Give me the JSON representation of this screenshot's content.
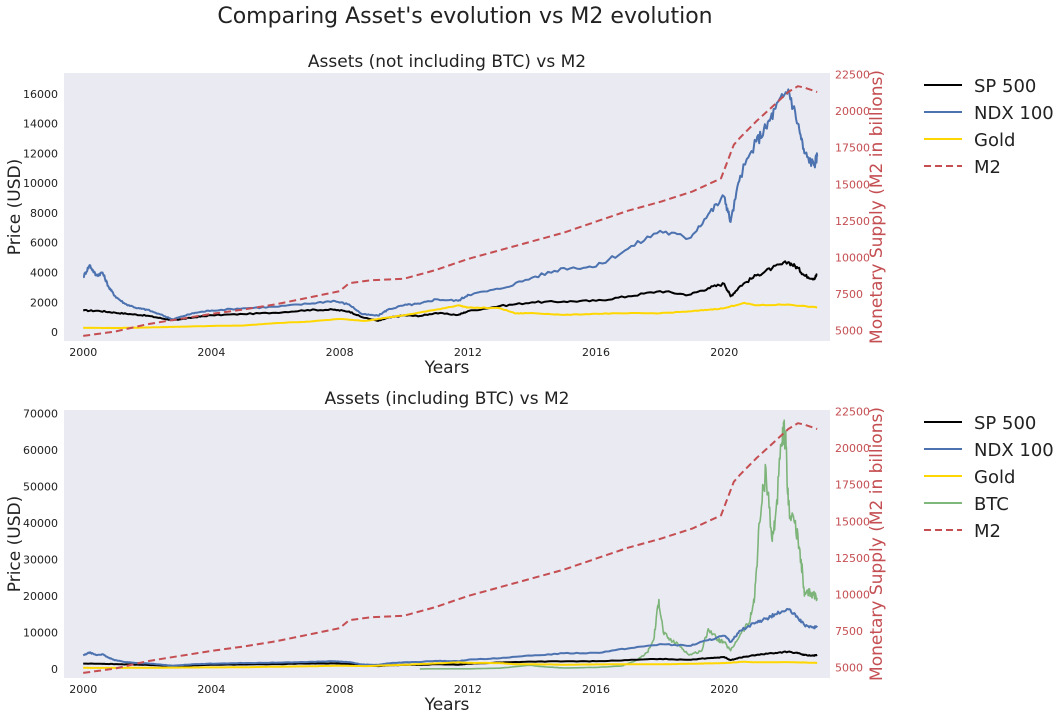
{
  "figure": {
    "title": "Comparing Asset's evolution vs M2 evolution"
  },
  "colors": {
    "plot_bg": "#eaeaf2",
    "sp500": "#000000",
    "ndx": "#4c72b0",
    "gold": "#ffd700",
    "btc": "#6aaa64",
    "m2": "#c44e52"
  },
  "chart_data": [
    {
      "type": "line",
      "title": "Assets (not including BTC) vs M2",
      "xlabel": "Years",
      "ylabel": "Price (USD)",
      "y2label": "Monetary Supply (M2 in billions)",
      "xlim": [
        1999.4,
        2023.3
      ],
      "ylim": [
        -600,
        17400
      ],
      "y2lim": [
        4300,
        22600
      ],
      "xticks": [
        2000,
        2004,
        2008,
        2012,
        2016,
        2020
      ],
      "yticks": [
        0,
        2000,
        4000,
        6000,
        8000,
        10000,
        12000,
        14000,
        16000
      ],
      "y2ticks": [
        5000,
        7500,
        10000,
        12500,
        15000,
        17500,
        20000,
        22500
      ],
      "grid": false,
      "legend_position": "outside-right",
      "series": [
        {
          "name": "SP 500",
          "axis": "left",
          "style": "solid",
          "x": [
            2000,
            2000.5,
            2001,
            2001.5,
            2002,
            2002.5,
            2002.8,
            2003,
            2003.5,
            2004,
            2005,
            2006,
            2007,
            2007.8,
            2008.3,
            2008.7,
            2009.2,
            2009.5,
            2010,
            2010.5,
            2011,
            2011.7,
            2012,
            2013,
            2014,
            2015,
            2016,
            2017,
            2018,
            2018.9,
            2019.5,
            2020,
            2020.2,
            2020.5,
            2021,
            2021.5,
            2022,
            2022.3,
            2022.5,
            2022.8,
            2022.9
          ],
          "y": [
            1450,
            1420,
            1300,
            1200,
            1100,
            900,
            800,
            850,
            1000,
            1130,
            1210,
            1300,
            1480,
            1500,
            1380,
            1000,
            750,
            950,
            1120,
            1080,
            1280,
            1150,
            1400,
            1750,
            2000,
            2050,
            2100,
            2400,
            2750,
            2500,
            2950,
            3250,
            2400,
            3100,
            3800,
            4300,
            4700,
            4300,
            3800,
            3600,
            3850
          ]
        },
        {
          "name": "NDX 100",
          "axis": "left",
          "style": "solid",
          "x": [
            2000,
            2000.2,
            2000.4,
            2000.6,
            2000.8,
            2001,
            2001.3,
            2001.7,
            2002,
            2002.5,
            2002.8,
            2003,
            2003.5,
            2004,
            2005,
            2006,
            2007,
            2007.8,
            2008.3,
            2008.7,
            2009.2,
            2009.5,
            2010,
            2010.5,
            2011,
            2011.7,
            2012,
            2013,
            2014,
            2015,
            2016,
            2017,
            2018,
            2018.9,
            2019.5,
            2020,
            2020.2,
            2020.5,
            2021,
            2021.3,
            2021.6,
            2022,
            2022.3,
            2022.5,
            2022.8,
            2022.9
          ],
          "y": [
            3700,
            4500,
            3800,
            4000,
            3000,
            2400,
            1900,
            1600,
            1500,
            1100,
            850,
            1000,
            1300,
            1450,
            1600,
            1700,
            1900,
            2100,
            1850,
            1200,
            1100,
            1500,
            1800,
            1900,
            2200,
            2100,
            2500,
            2900,
            3650,
            4300,
            4400,
            5600,
            6800,
            6300,
            7900,
            9100,
            7400,
            10500,
            12800,
            13700,
            15000,
            16300,
            14000,
            12000,
            11200,
            11800
          ]
        },
        {
          "name": "Gold",
          "axis": "left",
          "style": "solid",
          "x": [
            2000,
            2001,
            2002,
            2003,
            2004,
            2005,
            2006,
            2007,
            2008,
            2008.8,
            2009.5,
            2010,
            2011,
            2011.7,
            2012,
            2013,
            2013.5,
            2014,
            2015,
            2016,
            2017,
            2018,
            2019,
            2019.5,
            2020,
            2020.6,
            2021,
            2022,
            2022.9
          ],
          "y": [
            285,
            270,
            310,
            360,
            410,
            440,
            600,
            700,
            880,
            750,
            980,
            1120,
            1500,
            1800,
            1650,
            1600,
            1250,
            1280,
            1150,
            1230,
            1260,
            1270,
            1400,
            1500,
            1600,
            1950,
            1800,
            1850,
            1650
          ]
        },
        {
          "name": "M2",
          "axis": "right",
          "style": "dashed",
          "x": [
            2000,
            2001,
            2002,
            2003,
            2004,
            2005,
            2006,
            2007,
            2008,
            2008.3,
            2008.8,
            2009,
            2010,
            2011,
            2012,
            2013,
            2014,
            2015,
            2016,
            2017,
            2018,
            2019,
            2019.9,
            2020.3,
            2020.5,
            2021,
            2021.5,
            2022,
            2022.3,
            2022.5,
            2022.9
          ],
          "y": [
            4650,
            4950,
            5450,
            5800,
            6150,
            6450,
            6800,
            7250,
            7700,
            8250,
            8400,
            8450,
            8550,
            9150,
            9900,
            10500,
            11100,
            11700,
            12450,
            13200,
            13800,
            14500,
            15400,
            17700,
            18200,
            19300,
            20300,
            21300,
            21700,
            21600,
            21300
          ]
        }
      ]
    },
    {
      "type": "line",
      "title": "Assets (including BTC) vs M2",
      "xlabel": "Years",
      "ylabel": "Price (USD)",
      "y2label": "Monetary Supply (M2 in billions)",
      "xlim": [
        1999.4,
        2023.3
      ],
      "ylim": [
        -2500,
        71000
      ],
      "y2lim": [
        4300,
        22600
      ],
      "xticks": [
        2000,
        2004,
        2008,
        2012,
        2016,
        2020
      ],
      "yticks": [
        0,
        10000,
        20000,
        30000,
        40000,
        50000,
        60000,
        70000
      ],
      "y2ticks": [
        5000,
        7500,
        10000,
        12500,
        15000,
        17500,
        20000,
        22500
      ],
      "grid": false,
      "legend_position": "outside-right",
      "series": [
        {
          "name": "SP 500",
          "axis": "left",
          "style": "solid",
          "same_as": "SP 500"
        },
        {
          "name": "NDX 100",
          "axis": "left",
          "style": "solid",
          "same_as": "NDX 100"
        },
        {
          "name": "Gold",
          "axis": "left",
          "style": "solid",
          "same_as": "Gold"
        },
        {
          "name": "BTC",
          "axis": "left",
          "style": "solid",
          "x": [
            2010.5,
            2011,
            2012,
            2013,
            2013.9,
            2014.5,
            2015,
            2016,
            2016.8,
            2017.3,
            2017.6,
            2017.8,
            2017.96,
            2018.1,
            2018.3,
            2018.6,
            2018.9,
            2019.3,
            2019.5,
            2019.8,
            2020,
            2020.2,
            2020.5,
            2020.8,
            2020.95,
            2021.1,
            2021.3,
            2021.5,
            2021.6,
            2021.8,
            2021.9,
            2022,
            2022.2,
            2022.4,
            2022.5,
            2022.7,
            2022.9
          ],
          "y": [
            0,
            30,
            10,
            200,
            1000,
            500,
            250,
            400,
            800,
            2500,
            4500,
            8000,
            19000,
            10000,
            8000,
            6500,
            3800,
            5000,
            11000,
            8000,
            7200,
            5000,
            9500,
            13000,
            20000,
            40000,
            55000,
            35000,
            42000,
            62000,
            65000,
            45000,
            40000,
            30000,
            20000,
            21000,
            19500
          ]
        },
        {
          "name": "M2",
          "axis": "right",
          "style": "dashed",
          "same_as": "M2"
        }
      ]
    }
  ]
}
